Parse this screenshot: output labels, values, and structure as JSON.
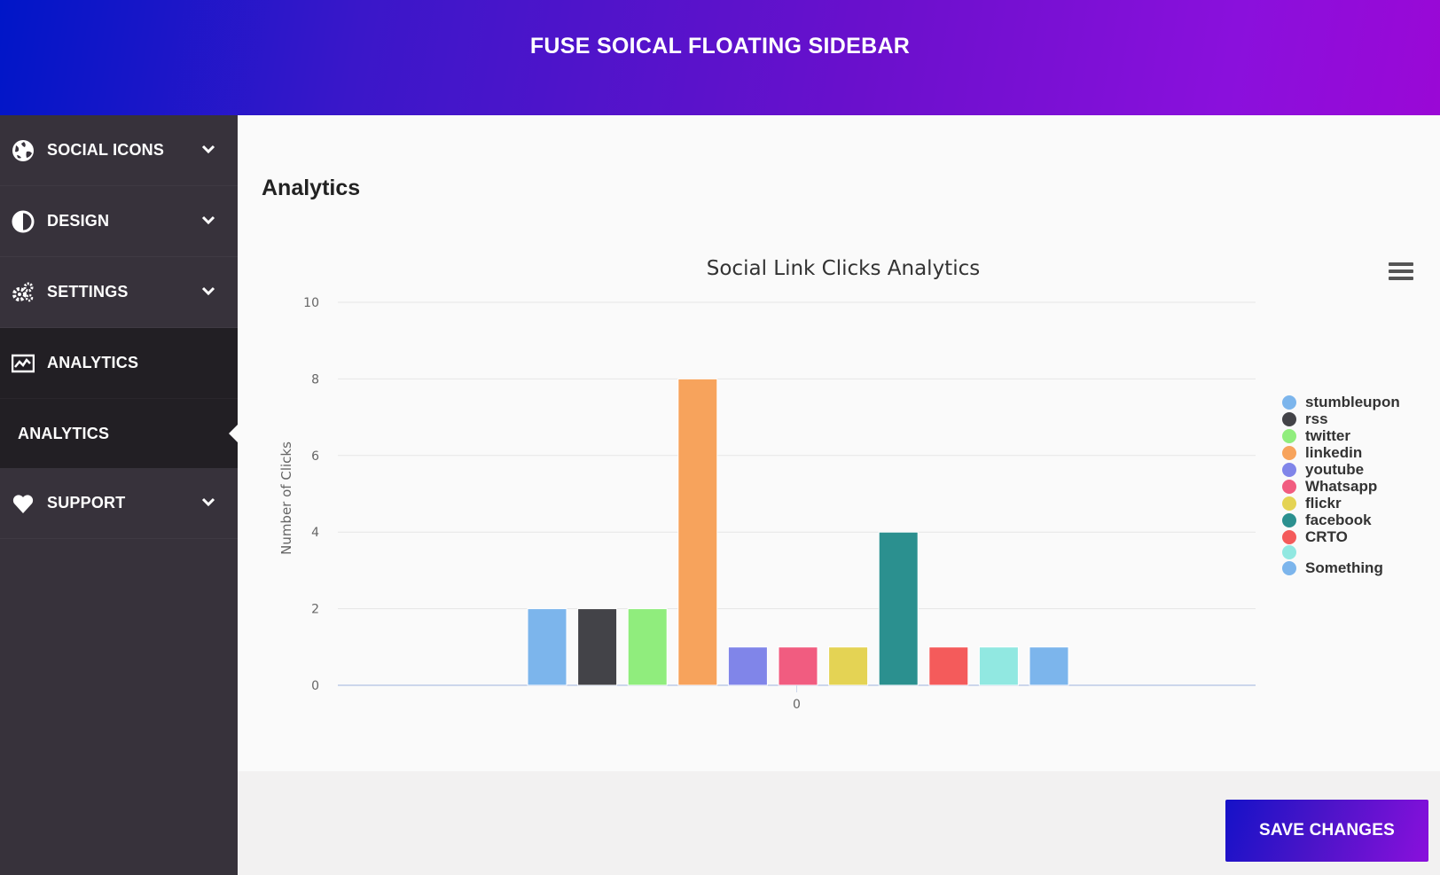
{
  "header": {
    "title": "FUSE SOICAL FLOATING SIDEBAR"
  },
  "sidebar": {
    "items": [
      {
        "label": "SOCIAL ICONS",
        "icon": "globe-icon"
      },
      {
        "label": "DESIGN",
        "icon": "contrast-icon"
      },
      {
        "label": "SETTINGS",
        "icon": "gears-icon"
      },
      {
        "label": "ANALYTICS",
        "icon": "chart-icon"
      },
      {
        "label": "SUPPORT",
        "icon": "heart-icon"
      }
    ],
    "sub_items": [
      {
        "label": "ANALYTICS"
      }
    ]
  },
  "main": {
    "section_title": "Analytics"
  },
  "chart_data": {
    "type": "bar",
    "title": "Social Link Clicks Analytics",
    "ylabel": "Number of Clicks",
    "xlabel": "",
    "categories": [
      "0"
    ],
    "ylim": [
      0,
      10
    ],
    "yticks": [
      0,
      2,
      4,
      6,
      8,
      10
    ],
    "grid": true,
    "legend_position": "right",
    "series": [
      {
        "name": "stumbleupon",
        "values": [
          2
        ],
        "color": "#7cb5ec"
      },
      {
        "name": "rss",
        "values": [
          2
        ],
        "color": "#434348"
      },
      {
        "name": "twitter",
        "values": [
          2
        ],
        "color": "#90ed7d"
      },
      {
        "name": "linkedin",
        "values": [
          8
        ],
        "color": "#f7a35c"
      },
      {
        "name": "youtube",
        "values": [
          1
        ],
        "color": "#8085e9"
      },
      {
        "name": "Whatsapp",
        "values": [
          1
        ],
        "color": "#f15c80"
      },
      {
        "name": "flickr",
        "values": [
          1
        ],
        "color": "#e4d354"
      },
      {
        "name": "facebook",
        "values": [
          4
        ],
        "color": "#2b908f"
      },
      {
        "name": "CRTO",
        "values": [
          1
        ],
        "color": "#f45b5b"
      },
      {
        "name": "",
        "values": [
          1
        ],
        "color": "#91e8e1"
      },
      {
        "name": "Something",
        "values": [
          1
        ],
        "color": "#7cb5ec"
      }
    ]
  },
  "footer": {
    "save_label": "SAVE CHANGES"
  }
}
